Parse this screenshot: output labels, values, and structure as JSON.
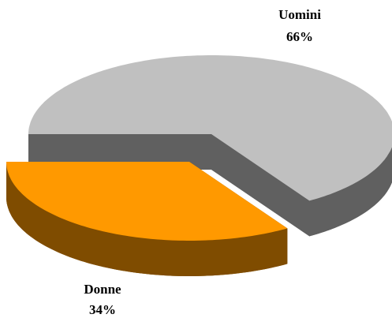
{
  "chart_data": {
    "type": "pie",
    "categories": [
      "Uomini",
      "Donne"
    ],
    "values": [
      66,
      34
    ],
    "value_labels": [
      "66%",
      "34%"
    ],
    "colors": [
      "#c0c0c0",
      "#ff9900"
    ],
    "side_colors": [
      "#606060",
      "#7f4c00"
    ],
    "three_d": true,
    "exploded": [
      false,
      true
    ]
  }
}
